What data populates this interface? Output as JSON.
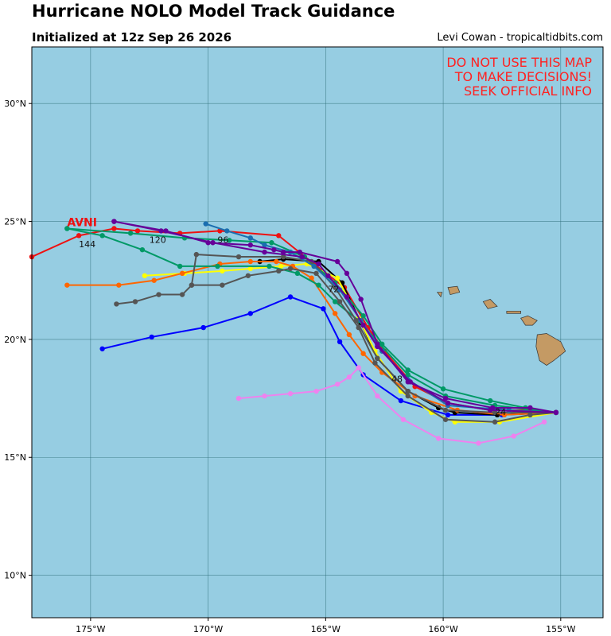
{
  "header": {
    "title": "Hurricane NOLO Model Track Guidance",
    "subtitle": "Initialized at 12z Sep 26 2026",
    "credit": "Levi Cowan - tropicaltidbits.com"
  },
  "warning": {
    "line1": "DO NOT USE THIS MAP",
    "line2": "TO MAKE DECISIONS!",
    "line3": "SEEK OFFICIAL INFO"
  },
  "colors": {
    "ocean": "#96cde2",
    "land": "#c49a64",
    "grid": "#2f6f7a",
    "warning": "#ff2222"
  },
  "map_extent": {
    "lon": [
      -177.5,
      -153.2
    ],
    "lat": [
      8.2,
      32.4
    ]
  },
  "axes": {
    "lon_ticks": [
      {
        "value": -175,
        "label": "175°W"
      },
      {
        "value": -170,
        "label": "170°W"
      },
      {
        "value": -165,
        "label": "165°W"
      },
      {
        "value": -160,
        "label": "160°W"
      },
      {
        "value": -155,
        "label": "155°W"
      }
    ],
    "lat_ticks": [
      {
        "value": 30,
        "label": "30°N"
      },
      {
        "value": 25,
        "label": "25°N"
      },
      {
        "value": 20,
        "label": "20°N"
      },
      {
        "value": 15,
        "label": "15°N"
      },
      {
        "value": 10,
        "label": "10°N"
      }
    ]
  },
  "labels": [
    {
      "text": "AVNI",
      "lon": -176.0,
      "lat": 24.8,
      "color": "#ee1111",
      "size": 14,
      "bold": true
    },
    {
      "text": "144",
      "lon": -175.5,
      "lat": 23.9,
      "color": "#111111",
      "size": 11,
      "bold": false
    },
    {
      "text": "120",
      "lon": -172.5,
      "lat": 24.1,
      "color": "#111111",
      "size": 11,
      "bold": false
    },
    {
      "text": "96",
      "lon": -169.6,
      "lat": 24.1,
      "color": "#111111",
      "size": 11,
      "bold": false
    },
    {
      "text": "72",
      "lon": -164.9,
      "lat": 22.0,
      "color": "#111111",
      "size": 11,
      "bold": false
    },
    {
      "text": "48",
      "lon": -162.2,
      "lat": 18.2,
      "color": "#111111",
      "size": 11,
      "bold": false
    },
    {
      "text": "24",
      "lon": -157.8,
      "lat": 16.8,
      "color": "#111111",
      "size": 11,
      "bold": false
    }
  ],
  "islands": [
    {
      "name": "hawaii",
      "lon": -155.5,
      "lat": 19.6
    },
    {
      "name": "maui",
      "lon": -156.3,
      "lat": 20.8
    },
    {
      "name": "molokai",
      "lon": -157.0,
      "lat": 21.1
    },
    {
      "name": "oahu",
      "lon": -158.0,
      "lat": 21.5
    },
    {
      "name": "kauai",
      "lon": -159.5,
      "lat": 22.1
    },
    {
      "name": "niihau",
      "lon": -160.2,
      "lat": 21.9
    }
  ],
  "tracks": [
    {
      "color": "#ee1111",
      "points": [
        [
          -155.2,
          16.9
        ],
        [
          -156.5,
          17.0
        ],
        [
          -158.0,
          17.0
        ],
        [
          -159.8,
          17.3
        ],
        [
          -161.2,
          18.0
        ],
        [
          -162.5,
          19.5
        ],
        [
          -163.2,
          20.5
        ],
        [
          -164.2,
          22.2
        ],
        [
          -165.5,
          23.2
        ],
        [
          -167.0,
          24.4
        ],
        [
          -169.5,
          24.6
        ],
        [
          -171.2,
          24.5
        ],
        [
          -173.0,
          24.6
        ],
        [
          -174.0,
          24.7
        ],
        [
          -175.5,
          24.4
        ],
        [
          -177.5,
          23.5
        ]
      ]
    },
    {
      "color": "#0000ff",
      "points": [
        [
          -155.2,
          16.9
        ],
        [
          -157.5,
          16.8
        ],
        [
          -159.8,
          16.8
        ],
        [
          -161.8,
          17.4
        ],
        [
          -163.4,
          18.5
        ],
        [
          -164.4,
          19.9
        ],
        [
          -165.1,
          21.3
        ],
        [
          -166.5,
          21.8
        ],
        [
          -168.2,
          21.1
        ],
        [
          -170.2,
          20.5
        ],
        [
          -172.4,
          20.1
        ],
        [
          -174.5,
          19.6
        ]
      ]
    },
    {
      "color": "#ee82ee",
      "points": [
        [
          -155.7,
          16.5
        ],
        [
          -157.0,
          15.9
        ],
        [
          -158.5,
          15.6
        ],
        [
          -160.2,
          15.8
        ],
        [
          -161.7,
          16.6
        ],
        [
          -162.8,
          17.6
        ],
        [
          -163.6,
          18.8
        ],
        [
          -164.0,
          18.4
        ],
        [
          -164.5,
          18.1
        ],
        [
          -165.4,
          17.8
        ],
        [
          -166.5,
          17.7
        ],
        [
          -167.6,
          17.6
        ],
        [
          -168.7,
          17.5
        ]
      ]
    },
    {
      "color": "#000000",
      "points": [
        [
          -155.2,
          16.9
        ],
        [
          -157.7,
          16.8
        ],
        [
          -159.5,
          16.9
        ],
        [
          -160.2,
          17.1
        ],
        [
          -161.5,
          17.8
        ],
        [
          -162.8,
          19.2
        ],
        [
          -163.5,
          20.7
        ],
        [
          -164.3,
          22.4
        ],
        [
          -165.3,
          23.3
        ],
        [
          -166.8,
          23.4
        ],
        [
          -167.8,
          23.3
        ]
      ]
    },
    {
      "color": "#ffff00",
      "points": [
        [
          -155.2,
          16.9
        ],
        [
          -157.6,
          16.5
        ],
        [
          -159.5,
          16.5
        ],
        [
          -160.5,
          16.9
        ],
        [
          -161.8,
          17.8
        ],
        [
          -162.9,
          19.5
        ],
        [
          -163.6,
          20.9
        ],
        [
          -164.5,
          22.6
        ],
        [
          -165.8,
          23.2
        ],
        [
          -166.9,
          23.1
        ],
        [
          -168.2,
          23.0
        ],
        [
          -169.4,
          22.9
        ],
        [
          -171.0,
          22.8
        ],
        [
          -172.7,
          22.7
        ]
      ]
    },
    {
      "color": "#ff6600",
      "points": [
        [
          -155.2,
          16.9
        ],
        [
          -157.4,
          16.8
        ],
        [
          -159.4,
          17.0
        ],
        [
          -161.2,
          17.6
        ],
        [
          -162.6,
          18.6
        ],
        [
          -163.4,
          19.4
        ],
        [
          -164.0,
          20.2
        ],
        [
          -164.6,
          21.1
        ],
        [
          -165.6,
          22.6
        ],
        [
          -166.4,
          23.1
        ],
        [
          -167.1,
          23.3
        ],
        [
          -168.2,
          23.3
        ],
        [
          -169.5,
          23.2
        ],
        [
          -171.1,
          22.8
        ],
        [
          -172.3,
          22.5
        ],
        [
          -173.8,
          22.3
        ],
        [
          -176.0,
          22.3
        ]
      ]
    },
    {
      "color": "#009966",
      "points": [
        [
          -155.2,
          16.9
        ],
        [
          -156.5,
          17.1
        ],
        [
          -158.0,
          17.4
        ],
        [
          -160.0,
          17.9
        ],
        [
          -161.5,
          18.7
        ],
        [
          -162.6,
          19.8
        ],
        [
          -163.4,
          21.0
        ],
        [
          -164.6,
          22.4
        ],
        [
          -165.9,
          23.5
        ],
        [
          -167.3,
          24.1
        ],
        [
          -169.1,
          24.2
        ],
        [
          -171.0,
          24.3
        ],
        [
          -173.3,
          24.5
        ],
        [
          -176.0,
          24.7
        ]
      ]
    },
    {
      "color": "#009966",
      "points": [
        [
          -155.2,
          16.9
        ],
        [
          -157.8,
          17.2
        ],
        [
          -159.9,
          17.6
        ],
        [
          -161.5,
          18.5
        ],
        [
          -162.7,
          19.8
        ],
        [
          -163.6,
          20.8
        ],
        [
          -164.6,
          21.6
        ],
        [
          -165.3,
          22.3
        ],
        [
          -166.2,
          22.8
        ],
        [
          -167.4,
          23.1
        ],
        [
          -169.6,
          23.1
        ],
        [
          -171.2,
          23.1
        ],
        [
          -172.8,
          23.8
        ],
        [
          -174.5,
          24.4
        ],
        [
          -176.0,
          24.7
        ]
      ]
    },
    {
      "color": "#555555",
      "points": [
        [
          -155.2,
          16.9
        ],
        [
          -156.3,
          16.8
        ],
        [
          -157.8,
          16.5
        ],
        [
          -159.9,
          16.6
        ],
        [
          -161.5,
          17.6
        ],
        [
          -162.9,
          19.0
        ],
        [
          -163.6,
          20.5
        ],
        [
          -164.4,
          21.6
        ],
        [
          -165.4,
          22.8
        ],
        [
          -166.5,
          23.0
        ],
        [
          -167.0,
          22.9
        ],
        [
          -168.3,
          22.7
        ],
        [
          -169.4,
          22.3
        ],
        [
          -170.7,
          22.3
        ],
        [
          -171.1,
          21.9
        ],
        [
          -172.1,
          21.9
        ],
        [
          -173.1,
          21.6
        ],
        [
          -173.9,
          21.5
        ]
      ]
    },
    {
      "color": "#555555",
      "points": [
        [
          -155.2,
          16.9
        ],
        [
          -157.8,
          16.9
        ],
        [
          -159.9,
          17.0
        ],
        [
          -161.5,
          17.8
        ],
        [
          -162.8,
          19.2
        ],
        [
          -163.7,
          20.8
        ],
        [
          -164.6,
          22.2
        ],
        [
          -165.6,
          23.3
        ],
        [
          -166.8,
          23.5
        ],
        [
          -168.7,
          23.5
        ],
        [
          -170.5,
          23.6
        ],
        [
          -170.7,
          22.3
        ]
      ]
    },
    {
      "color": "#1a6eb0",
      "points": [
        [
          -155.2,
          16.9
        ],
        [
          -157.2,
          17.0
        ],
        [
          -159.8,
          17.2
        ],
        [
          -161.5,
          18.3
        ],
        [
          -162.6,
          19.5
        ],
        [
          -163.5,
          20.8
        ],
        [
          -164.4,
          22.1
        ],
        [
          -165.5,
          23.1
        ],
        [
          -166.5,
          23.7
        ],
        [
          -167.6,
          24.0
        ],
        [
          -168.2,
          24.3
        ],
        [
          -169.2,
          24.6
        ],
        [
          -170.1,
          24.9
        ]
      ]
    },
    {
      "color": "#660099",
      "points": [
        [
          -155.2,
          16.9
        ],
        [
          -156.3,
          17.1
        ],
        [
          -157.9,
          17.1
        ],
        [
          -159.9,
          17.5
        ],
        [
          -161.5,
          18.2
        ],
        [
          -162.8,
          19.8
        ],
        [
          -163.5,
          21.7
        ],
        [
          -164.1,
          22.8
        ],
        [
          -164.5,
          23.3
        ],
        [
          -166.1,
          23.7
        ],
        [
          -166.8,
          23.7
        ],
        [
          -167.2,
          23.8
        ],
        [
          -168.2,
          24.0
        ],
        [
          -170.0,
          24.1
        ],
        [
          -171.8,
          24.6
        ],
        [
          -174.0,
          25.0
        ]
      ]
    },
    {
      "color": "#660099",
      "points": [
        [
          -155.2,
          16.9
        ],
        [
          -158.0,
          17.0
        ],
        [
          -159.8,
          17.3
        ],
        [
          -161.4,
          18.2
        ],
        [
          -162.8,
          19.7
        ],
        [
          -163.4,
          20.6
        ],
        [
          -164.1,
          21.8
        ],
        [
          -164.9,
          22.7
        ],
        [
          -165.3,
          23.2
        ],
        [
          -166.0,
          23.5
        ],
        [
          -167.6,
          23.7
        ],
        [
          -169.8,
          24.1
        ],
        [
          -172.0,
          24.6
        ],
        [
          -174.0,
          25.0
        ]
      ]
    }
  ]
}
